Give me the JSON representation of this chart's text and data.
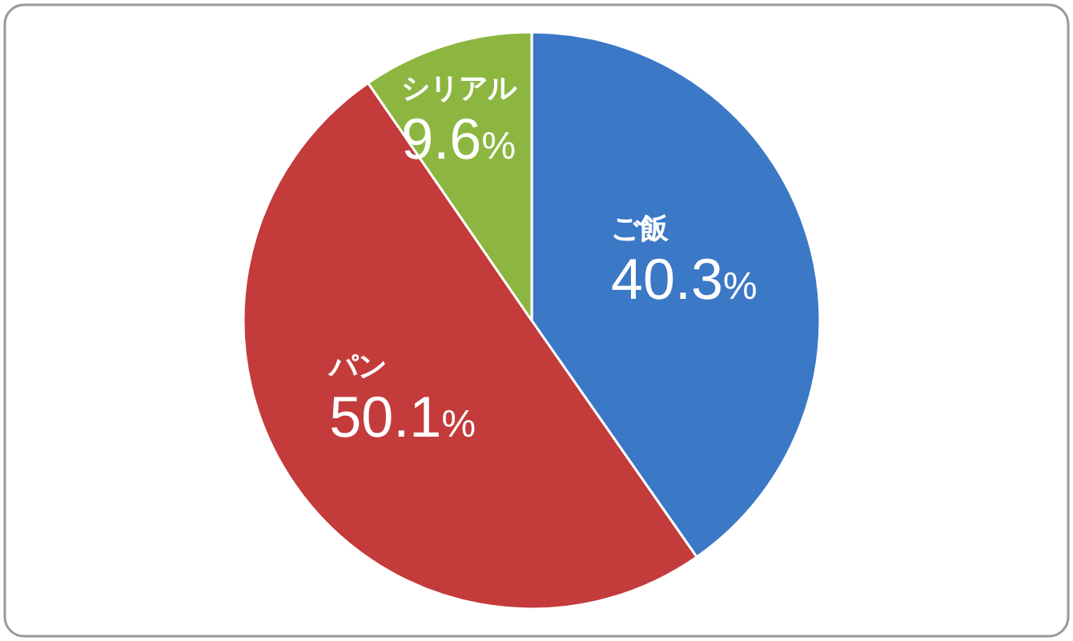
{
  "chart_data": {
    "type": "pie",
    "categories": [
      "ご飯",
      "パン",
      "シリアル"
    ],
    "values": [
      40.3,
      50.1,
      9.6
    ],
    "value_labels": [
      "40.3%",
      "50.1%",
      "9.6%"
    ],
    "colors": [
      "#3b78c6",
      "#c43b3b",
      "#8cb640"
    ]
  }
}
